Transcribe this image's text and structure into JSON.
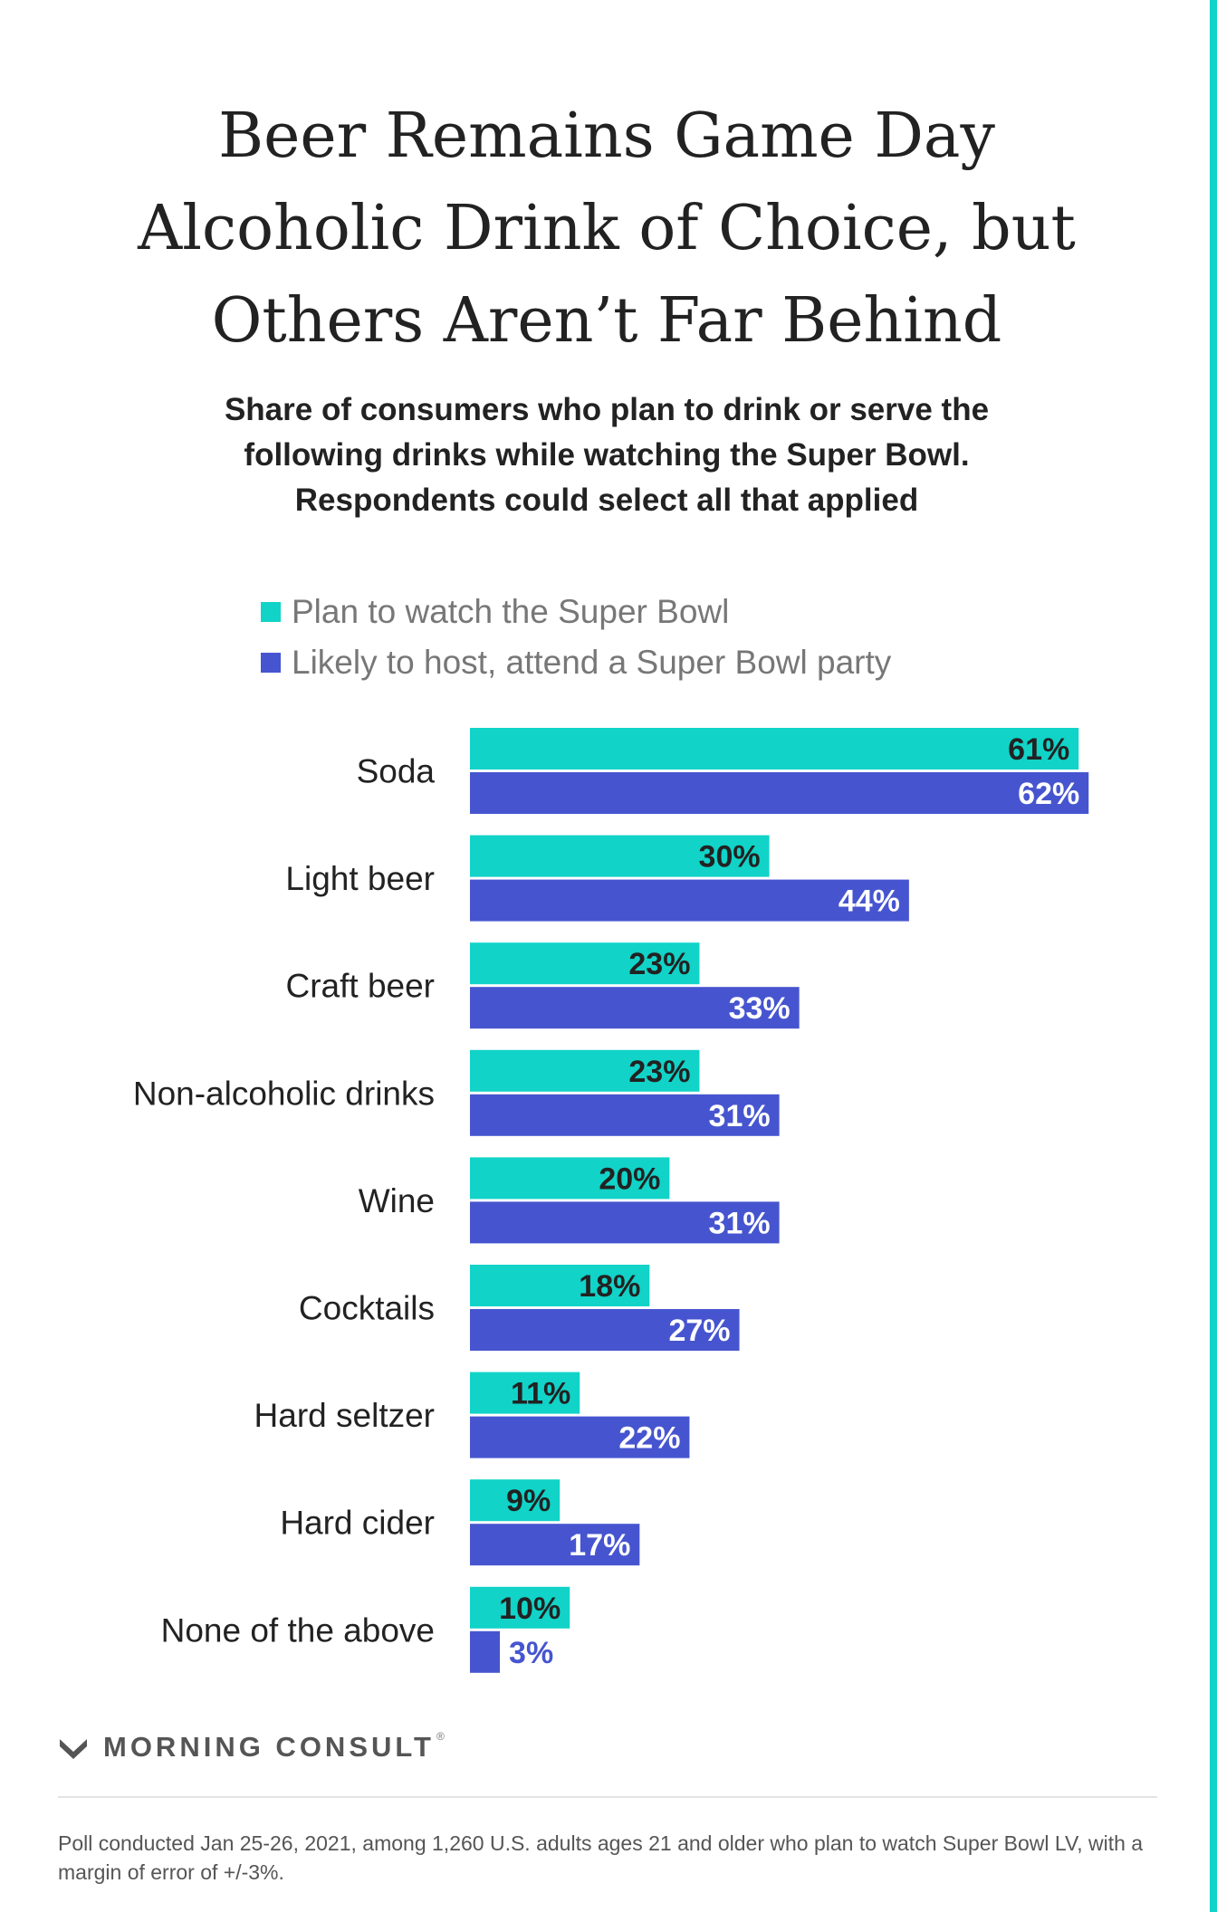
{
  "title_lines": [
    "Beer Remains Game Day",
    "Alcoholic Drink of Choice, but",
    "Others Aren’t Far Behind"
  ],
  "subtitle_lines": [
    "Share of consumers who plan to drink or serve the",
    "following drinks while watching the Super Bowl.",
    "Respondents could select all that applied"
  ],
  "colors": {
    "watch": "#11d3c8",
    "host": "#4655cf",
    "label_dark": "#222222",
    "label_light": "#ffffff",
    "accent": "#11d3c8"
  },
  "brand": {
    "name": "MORNING CONSULT",
    "reg_mark": "®",
    "icon": "morning-consult-logo-icon"
  },
  "footnote": "Poll conducted Jan 25-26, 2021, among 1,260 U.S. adults ages 21 and older who plan to watch Super Bowl LV, with a margin of error of +/-3%.",
  "chart_data": {
    "type": "bar",
    "orientation": "horizontal",
    "title": "Beer Remains Game Day Alcoholic Drink of Choice, but Others Aren’t Far Behind",
    "subtitle": "Share of consumers who plan to drink or serve the following drinks while watching the Super Bowl. Respondents could select all that applied",
    "categories": [
      "Soda",
      "Light beer",
      "Craft beer",
      "Non-alcoholic drinks",
      "Wine",
      "Cocktails",
      "Hard seltzer",
      "Hard cider",
      "None of the above"
    ],
    "series": [
      {
        "name": "Plan to watch the Super Bowl",
        "values": [
          61,
          30,
          23,
          23,
          20,
          18,
          11,
          9,
          10
        ]
      },
      {
        "name": "Likely to host, attend a Super Bowl party",
        "values": [
          62,
          44,
          33,
          31,
          31,
          27,
          22,
          17,
          3
        ]
      }
    ],
    "value_suffix": "%",
    "xlim": [
      0,
      62
    ],
    "grid": false,
    "legend_position": "top"
  }
}
